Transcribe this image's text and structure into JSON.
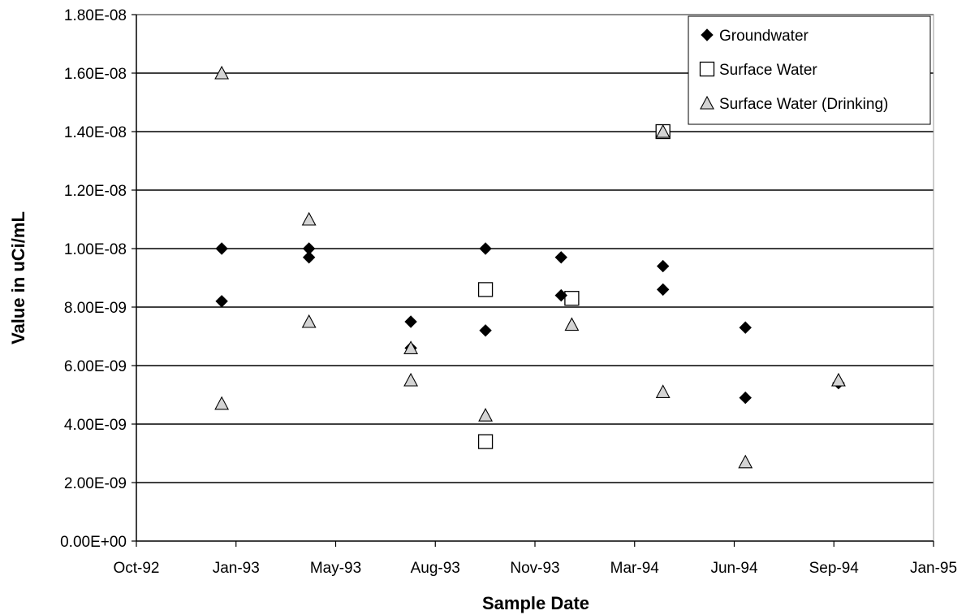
{
  "chart_data": {
    "type": "scatter",
    "xlabel": "Sample Date",
    "ylabel": "Value in uCi/mL",
    "x_ticks": [
      "Oct-92",
      "Jan-93",
      "May-93",
      "Aug-93",
      "Nov-93",
      "Mar-94",
      "Jun-94",
      "Sep-94",
      "Jan-95"
    ],
    "y_ticks": [
      "0.00E+00",
      "2.00E-09",
      "4.00E-09",
      "6.00E-09",
      "8.00E-09",
      "1.00E-08",
      "1.20E-08",
      "1.40E-08",
      "1.60E-08",
      "1.80E-08"
    ],
    "xlim": [
      "1992-10-01",
      "1995-01-01"
    ],
    "ylim": [
      0,
      1.8e-08
    ],
    "grid": "horizontal",
    "legend_position": "top-right",
    "series": [
      {
        "name": "Groundwater",
        "marker": "diamond",
        "color": "#000000",
        "points": [
          {
            "x": "1992-12-28",
            "y": 1e-08
          },
          {
            "x": "1992-12-28",
            "y": 8.2e-09
          },
          {
            "x": "1993-03-28",
            "y": 1e-08
          },
          {
            "x": "1993-03-28",
            "y": 9.7e-09
          },
          {
            "x": "1993-07-11",
            "y": 7.5e-09
          },
          {
            "x": "1993-07-11",
            "y": 6.6e-09
          },
          {
            "x": "1993-09-26",
            "y": 1e-08
          },
          {
            "x": "1993-09-26",
            "y": 7.2e-09
          },
          {
            "x": "1993-12-13",
            "y": 9.7e-09
          },
          {
            "x": "1993-12-13",
            "y": 8.4e-09
          },
          {
            "x": "1994-03-28",
            "y": 9.4e-09
          },
          {
            "x": "1994-03-28",
            "y": 8.6e-09
          },
          {
            "x": "1994-06-21",
            "y": 7.3e-09
          },
          {
            "x": "1994-06-21",
            "y": 4.9e-09
          },
          {
            "x": "1994-09-25",
            "y": 5.4e-09
          }
        ]
      },
      {
        "name": "Surface Water",
        "marker": "square",
        "color": "#ffffff",
        "points": [
          {
            "x": "1993-09-26",
            "y": 8.6e-09
          },
          {
            "x": "1993-09-26",
            "y": 3.4e-09
          },
          {
            "x": "1993-12-24",
            "y": 8.3e-09
          },
          {
            "x": "1994-03-28",
            "y": 1.4e-08
          }
        ]
      },
      {
        "name": "Surface Water (Drinking)",
        "marker": "triangle",
        "color": "#d4d4d4",
        "points": [
          {
            "x": "1992-12-28",
            "y": 1.6e-08
          },
          {
            "x": "1992-12-28",
            "y": 4.7e-09
          },
          {
            "x": "1993-03-28",
            "y": 1.1e-08
          },
          {
            "x": "1993-03-28",
            "y": 7.5e-09
          },
          {
            "x": "1993-07-11",
            "y": 6.6e-09
          },
          {
            "x": "1993-07-11",
            "y": 5.5e-09
          },
          {
            "x": "1993-09-26",
            "y": 4.3e-09
          },
          {
            "x": "1993-12-24",
            "y": 7.4e-09
          },
          {
            "x": "1994-03-28",
            "y": 1.4e-08
          },
          {
            "x": "1994-03-28",
            "y": 5.1e-09
          },
          {
            "x": "1994-06-21",
            "y": 2.7e-09
          },
          {
            "x": "1994-09-25",
            "y": 5.5e-09
          }
        ]
      }
    ]
  }
}
